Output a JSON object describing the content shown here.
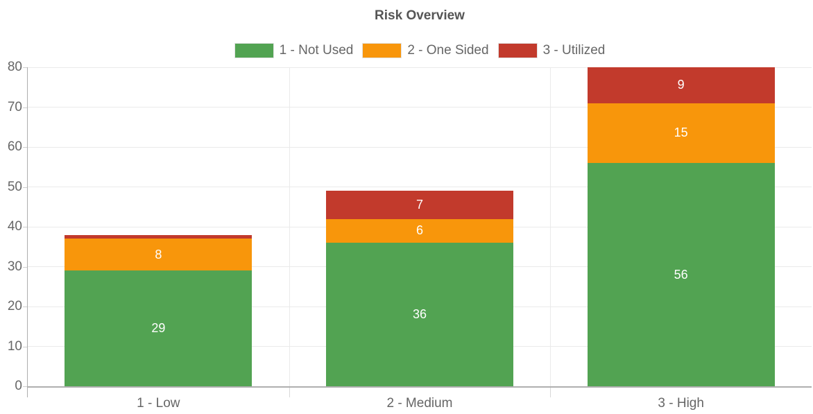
{
  "chart_data": {
    "type": "bar",
    "stacked": true,
    "title": "Risk Overview",
    "legend_position": "top",
    "grid": true,
    "categories": [
      "1 - Low",
      "2 - Medium",
      "3 - High"
    ],
    "series": [
      {
        "name": "1 - Not Used",
        "color": "#52A352",
        "values": [
          29,
          36,
          56
        ],
        "value_labels": [
          "29",
          "36",
          "56"
        ]
      },
      {
        "name": "2 - One Sided",
        "color": "#F8960B",
        "values": [
          8,
          6,
          15
        ],
        "value_labels": [
          "8",
          "6",
          "15"
        ]
      },
      {
        "name": "3 - Utilized",
        "color": "#C23A2C",
        "values": [
          1,
          7,
          9
        ],
        "value_labels": [
          "",
          "7",
          "9"
        ]
      }
    ],
    "y_axis": {
      "min": 0,
      "max": 80,
      "tick_step": 10,
      "tick_labels": [
        "0",
        "10",
        "20",
        "30",
        "40",
        "50",
        "60",
        "70",
        "80"
      ]
    },
    "value_label_color": "#ffffff",
    "text_color": "#666666",
    "title_color": "#555555"
  }
}
